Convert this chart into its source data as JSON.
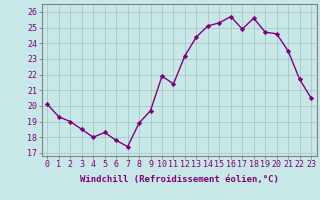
{
  "hours": [
    0,
    1,
    2,
    3,
    4,
    5,
    6,
    7,
    8,
    9,
    10,
    11,
    12,
    13,
    14,
    15,
    16,
    17,
    18,
    19,
    20,
    21,
    22,
    23
  ],
  "values": [
    20.1,
    19.3,
    19.0,
    18.5,
    18.0,
    18.3,
    17.8,
    17.4,
    18.9,
    19.7,
    21.9,
    21.4,
    23.2,
    24.4,
    25.1,
    25.3,
    25.7,
    24.9,
    25.6,
    24.7,
    24.6,
    23.5,
    21.7,
    20.5
  ],
  "line_color": "#800080",
  "marker": "D",
  "marker_size": 2.2,
  "bg_color": "#c8e8e8",
  "grid_color": "#a8c8c8",
  "ylabel_ticks": [
    17,
    18,
    19,
    20,
    21,
    22,
    23,
    24,
    25,
    26
  ],
  "ylim": [
    16.8,
    26.5
  ],
  "xlim": [
    -0.5,
    23.5
  ],
  "xlabel": "Windchill (Refroidissement éolien,°C)",
  "xlabel_fontsize": 6.5,
  "tick_fontsize": 6,
  "line_width": 1.0
}
